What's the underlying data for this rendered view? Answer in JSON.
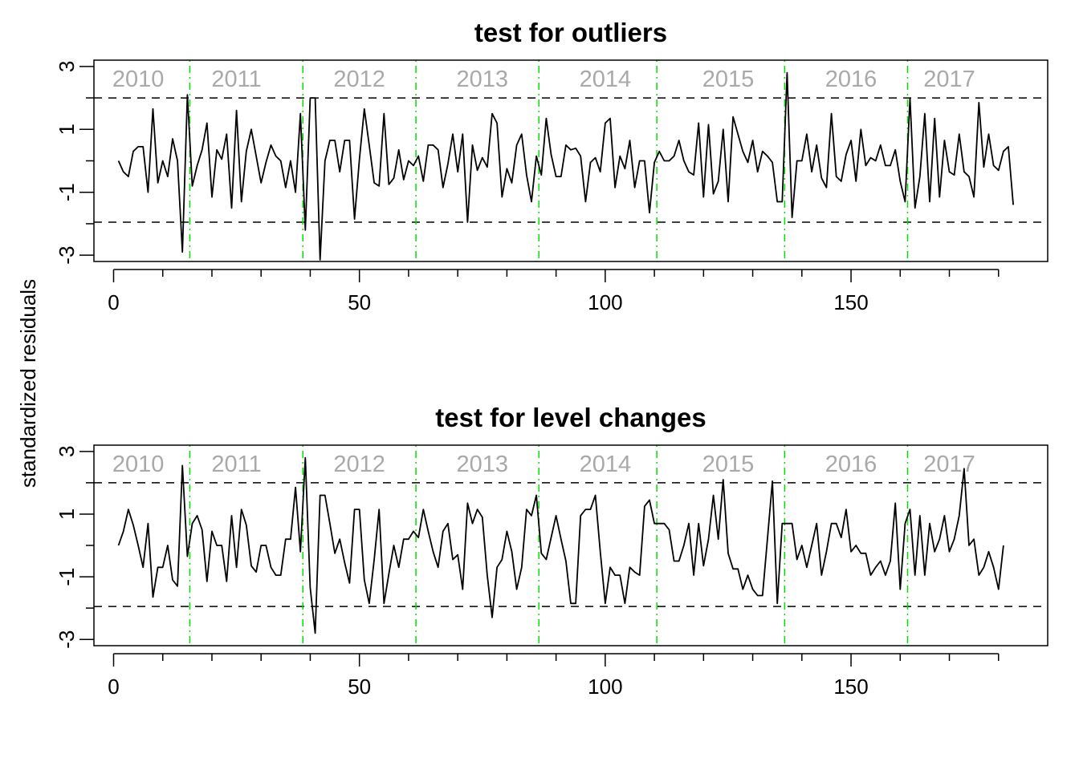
{
  "figure": {
    "ylabel": "standardized residuals"
  },
  "chart_data": [
    {
      "type": "line",
      "title": "test for outliers",
      "xlabel": "",
      "ylabel": "standardized residuals",
      "xlim": [
        -4,
        190
      ],
      "ylim": [
        -3.2,
        3.2
      ],
      "xticks": [
        0,
        50,
        100,
        150
      ],
      "yticks": [
        3,
        1,
        -1,
        -3
      ],
      "thresholds": [
        2.0,
        -1.95
      ],
      "year_breaks": [
        15.5,
        38.5,
        61.5,
        86.5,
        110.5,
        136.5,
        161.5
      ],
      "year_labels": [
        {
          "label": "2010",
          "x": 5
        },
        {
          "label": "2011",
          "x": 25
        },
        {
          "label": "2012",
          "x": 50
        },
        {
          "label": "2013",
          "x": 75
        },
        {
          "label": "2014",
          "x": 100
        },
        {
          "label": "2015",
          "x": 125
        },
        {
          "label": "2016",
          "x": 150
        },
        {
          "label": "2017",
          "x": 170
        }
      ],
      "grid": false,
      "series": [
        {
          "values": [
            0.0,
            -0.35,
            -0.5,
            0.3,
            0.45,
            0.45,
            -1.0,
            1.65,
            -0.7,
            0.0,
            -0.5,
            0.7,
            0.0,
            -2.9,
            2.1,
            -0.8,
            -0.15,
            0.35,
            1.2,
            -1.15,
            0.35,
            0.05,
            0.85,
            -1.5,
            1.6,
            -1.3,
            0.3,
            1.0,
            0.15,
            -0.7,
            -0.05,
            0.5,
            0.15,
            0.0,
            -0.85,
            0.0,
            -1.0,
            1.5,
            -2.2,
            2.0,
            2.0,
            -3.15,
            0.0,
            0.65,
            0.65,
            -0.35,
            0.65,
            0.65,
            -1.85,
            0.05,
            1.65,
            0.5,
            -0.7,
            -0.8,
            1.5,
            -0.75,
            -0.55,
            0.35,
            -0.6,
            0.0,
            -0.15,
            0.15,
            -0.65,
            0.5,
            0.5,
            0.35,
            -0.85,
            -0.1,
            0.85,
            -0.35,
            0.85,
            -1.95,
            0.5,
            -0.3,
            0.1,
            -0.2,
            1.5,
            1.2,
            -1.15,
            -0.25,
            -0.7,
            0.5,
            0.85,
            -0.45,
            -1.3,
            0.15,
            -0.45,
            1.35,
            0.2,
            -0.5,
            -0.5,
            0.5,
            0.35,
            0.4,
            0.15,
            -1.3,
            -0.05,
            0.1,
            -0.35,
            1.2,
            1.35,
            -0.85,
            0.15,
            -0.25,
            0.65,
            -0.85,
            0.0,
            0.0,
            -1.65,
            -0.05,
            0.3,
            0.0,
            0.0,
            0.15,
            0.65,
            0.0,
            -0.35,
            -0.45,
            1.2,
            -1.15,
            1.15,
            -1.05,
            -0.65,
            1.0,
            -1.3,
            1.4,
            0.85,
            0.3,
            -0.05,
            0.65,
            -0.35,
            0.3,
            0.15,
            -0.05,
            -1.3,
            -1.3,
            2.8,
            -1.8,
            0.0,
            0.0,
            0.85,
            -0.35,
            0.5,
            -0.55,
            -0.85,
            1.5,
            -0.5,
            -0.65,
            0.2,
            0.65,
            -0.65,
            1.0,
            -0.15,
            0.1,
            0.0,
            0.5,
            -0.15,
            -0.15,
            0.35,
            -0.65,
            -1.3,
            2.0,
            -1.5,
            -0.5,
            1.5,
            -1.3,
            1.35,
            -1.15,
            0.65,
            -0.35,
            -0.45,
            0.85,
            -0.35,
            -0.5,
            -1.15,
            1.85,
            -0.2,
            0.85,
            -0.15,
            -0.3,
            0.3,
            0.45,
            -1.4
          ]
        }
      ]
    },
    {
      "type": "line",
      "title": "test for level changes",
      "xlabel": "",
      "ylabel": "standardized residuals",
      "xlim": [
        -4,
        190
      ],
      "ylim": [
        -3.2,
        3.2
      ],
      "xticks": [
        0,
        50,
        100,
        150
      ],
      "yticks": [
        3,
        1,
        -1,
        -3
      ],
      "thresholds": [
        2.0,
        -1.95
      ],
      "year_breaks": [
        15.5,
        38.5,
        61.5,
        86.5,
        110.5,
        136.5,
        161.5
      ],
      "year_labels": [
        {
          "label": "2010",
          "x": 5
        },
        {
          "label": "2011",
          "x": 25
        },
        {
          "label": "2012",
          "x": 50
        },
        {
          "label": "2013",
          "x": 75
        },
        {
          "label": "2014",
          "x": 100
        },
        {
          "label": "2015",
          "x": 125
        },
        {
          "label": "2016",
          "x": 150
        },
        {
          "label": "2017",
          "x": 170
        }
      ],
      "grid": false,
      "series": [
        {
          "values": [
            0.0,
            0.45,
            1.15,
            0.65,
            0.0,
            -0.7,
            0.7,
            -1.65,
            -0.7,
            -0.7,
            0.0,
            -1.1,
            -1.3,
            2.55,
            -0.35,
            0.7,
            0.95,
            0.5,
            -1.15,
            0.45,
            0.0,
            0.0,
            -1.15,
            0.95,
            -0.7,
            1.15,
            0.65,
            -0.65,
            -0.85,
            0.0,
            0.0,
            -0.7,
            -0.95,
            -0.95,
            0.2,
            0.2,
            1.85,
            -0.2,
            2.8,
            -1.35,
            -2.8,
            1.6,
            1.6,
            0.7,
            -0.25,
            0.2,
            -0.55,
            -1.2,
            1.15,
            1.15,
            -1.1,
            -1.85,
            -0.45,
            1.15,
            -1.85,
            -0.9,
            0.0,
            -0.7,
            0.2,
            0.2,
            0.45,
            0.25,
            1.15,
            0.45,
            -0.2,
            -0.7,
            0.45,
            0.7,
            -0.45,
            -0.3,
            -1.4,
            1.35,
            0.7,
            1.15,
            0.9,
            -0.95,
            -2.3,
            -0.7,
            -0.45,
            0.45,
            -0.2,
            -1.4,
            -0.7,
            1.15,
            0.95,
            1.6,
            -0.25,
            -0.45,
            0.25,
            0.95,
            0.2,
            -0.5,
            -1.85,
            -1.85,
            0.95,
            1.15,
            1.15,
            1.6,
            -0.2,
            -1.85,
            -0.7,
            -0.95,
            -0.95,
            -1.85,
            -0.7,
            -0.85,
            -0.95,
            1.25,
            1.45,
            0.7,
            0.7,
            0.7,
            0.5,
            -0.5,
            -0.5,
            0.0,
            0.7,
            -0.95,
            0.7,
            -0.65,
            0.2,
            1.6,
            0.2,
            2.1,
            -0.25,
            -0.75,
            -0.75,
            -1.4,
            -0.95,
            -1.4,
            -1.6,
            -1.6,
            0.2,
            2.05,
            -1.85,
            0.7,
            0.7,
            0.7,
            -0.45,
            0.0,
            -0.7,
            0.0,
            0.7,
            -0.95,
            -0.2,
            0.7,
            0.7,
            0.25,
            1.15,
            -0.2,
            0.0,
            -0.25,
            -0.25,
            -0.95,
            -0.7,
            -0.5,
            -0.95,
            -0.5,
            1.35,
            -1.4,
            0.7,
            1.15,
            -0.95,
            0.95,
            -0.95,
            0.7,
            -0.2,
            0.2,
            0.95,
            -0.2,
            0.2,
            0.95,
            2.45,
            0.0,
            0.2,
            -0.95,
            -0.7,
            -0.2,
            -0.7,
            -1.4,
            0.0
          ]
        }
      ]
    }
  ]
}
